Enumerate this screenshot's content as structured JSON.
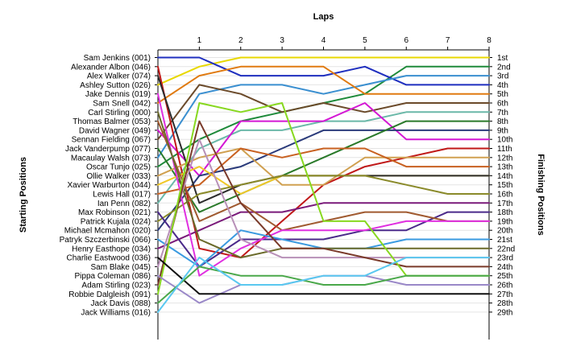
{
  "chart_data": {
    "type": "line",
    "title": "Laps",
    "ylabel_left": "Starting Positions",
    "ylabel_right": "Finishing Positions",
    "x_ticks": [
      "1",
      "2",
      "3",
      "4",
      "5",
      "6",
      "7",
      "8"
    ],
    "starting_positions": [
      "Sam Jenkins (001)",
      "Alexander Albon (046)",
      "Alex Walker (074)",
      "Ashley Sutton (026)",
      "Jake Dennis (019)",
      "Sam Snell (042)",
      "Carl Stirling (000)",
      "Thomas Balmer (053)",
      "David Wagner (049)",
      "Sennan Fielding (067)",
      "Jack Vanderpump (077)",
      "Macaulay Walsh (073)",
      "Oscar Tunjo (025)",
      "Ollie Walker (033)",
      "Xavier Warburton (044)",
      "Lewis Hall (017)",
      "Ian Penn (082)",
      "Max Robinson (021)",
      "Patrick Kujala (024)",
      "Michael Mcmahon (020)",
      "Patryk Szczerbinski (066)",
      "Henry Easthope (034)",
      "Charlie Eastwood (036)",
      "Sam Blake (045)",
      "Pippa Coleman (086)",
      "Adam Stirling (023)",
      "Robbie Dalgleish (091)",
      "Jack Davis (088)",
      "Jack Williams (016)"
    ],
    "finishing_positions": [
      "1st",
      "2nd",
      "3rd",
      "4th",
      "5th",
      "6th",
      "7th",
      "8th",
      "9th",
      "10th",
      "11th",
      "12th",
      "13th",
      "14th",
      "15th",
      "16th",
      "17th",
      "18th",
      "19th",
      "20th",
      "21st",
      "22nd",
      "23rd",
      "24th",
      "25th",
      "26th",
      "27th",
      "28th",
      "29th"
    ],
    "series": [
      {
        "color": "#e8d800",
        "positions": [
          4,
          2,
          1,
          1,
          1,
          1,
          1,
          1,
          1
        ]
      },
      {
        "color": "#1e8a3a",
        "positions": [
          13,
          10,
          8,
          7,
          6,
          5,
          2,
          2,
          2
        ]
      },
      {
        "color": "#1f2fbf",
        "positions": [
          1,
          1,
          3,
          3,
          3,
          2,
          4,
          4,
          4
        ]
      },
      {
        "color": "#3a8fd0",
        "positions": [
          12,
          5,
          4,
          4,
          5,
          4,
          3,
          3,
          3
        ]
      },
      {
        "color": "#e07a10",
        "positions": [
          6,
          3,
          2,
          2,
          2,
          5,
          5,
          5,
          5
        ]
      },
      {
        "color": "#6b4a2a",
        "positions": [
          10,
          4,
          5,
          7,
          6,
          7,
          6,
          6,
          6
        ]
      },
      {
        "color": "#6ab8a8",
        "positions": [
          17,
          11,
          9,
          9,
          8,
          8,
          7,
          7,
          7
        ]
      },
      {
        "color": "#d418d4",
        "positions": [
          9,
          14,
          8,
          8,
          8,
          6,
          10,
          10,
          10
        ]
      },
      {
        "color": "#2a3a7a",
        "positions": [
          20,
          14,
          13,
          11,
          9,
          9,
          9,
          9,
          9
        ]
      },
      {
        "color": "#2a7a2a",
        "positions": [
          11,
          18,
          16,
          14,
          12,
          10,
          8,
          8,
          8
        ]
      },
      {
        "color": "#c01818",
        "positions": [
          2,
          22,
          23,
          19,
          15,
          13,
          12,
          11,
          11
        ]
      },
      {
        "color": "#d0a050",
        "positions": [
          14,
          12,
          11,
          15,
          15,
          12,
          12,
          12,
          12
        ]
      },
      {
        "color": "#c86020",
        "positions": [
          16,
          15,
          11,
          12,
          11,
          11,
          13,
          13,
          13
        ]
      },
      {
        "color": "#f0c828",
        "positions": [
          15,
          13,
          16,
          14,
          14,
          14,
          14,
          14,
          14
        ]
      },
      {
        "color": "#2c2c2c",
        "positions": [
          3,
          17,
          15,
          14,
          14,
          14,
          14,
          14,
          14
        ]
      },
      {
        "color": "#8a8a2a",
        "positions": [
          19,
          16,
          15,
          14,
          14,
          14,
          15,
          16,
          16
        ]
      },
      {
        "color": "#7a1a7a",
        "positions": [
          22,
          20,
          18,
          18,
          17,
          17,
          17,
          17,
          17
        ]
      },
      {
        "color": "#4b2a8a",
        "positions": [
          18,
          24,
          21,
          21,
          21,
          20,
          20,
          18,
          18
        ]
      },
      {
        "color": "#a05a30",
        "positions": [
          8,
          19,
          17,
          20,
          19,
          18,
          18,
          19,
          19
        ]
      },
      {
        "color": "#e030e0",
        "positions": [
          5,
          25,
          22,
          20,
          20,
          20,
          19,
          19,
          19
        ]
      },
      {
        "color": "#3a9ae0",
        "positions": [
          21,
          24,
          20,
          21,
          22,
          22,
          21,
          21,
          21
        ]
      },
      {
        "color": "#6a6a2a",
        "positions": [
          7,
          21,
          23,
          22,
          22,
          22,
          22,
          22,
          22
        ]
      },
      {
        "color": "#b890b8",
        "positions": [
          24,
          10,
          21,
          23,
          23,
          23,
          23,
          23,
          23
        ]
      },
      {
        "color": "#7a3a2a",
        "positions": [
          26,
          8,
          17,
          22,
          22,
          23,
          24,
          24,
          24
        ]
      },
      {
        "color": "#88d820",
        "positions": [
          27,
          6,
          7,
          6,
          19,
          19,
          25,
          25,
          25
        ]
      },
      {
        "color": "#9a88c8",
        "positions": [
          25,
          28,
          26,
          26,
          25,
          25,
          26,
          26,
          26
        ]
      },
      {
        "color": "#101010",
        "positions": [
          23,
          27,
          27,
          27,
          27,
          27,
          27,
          27,
          27
        ]
      },
      {
        "color": "#4aa84a",
        "positions": [
          28,
          24,
          25,
          25,
          26,
          26,
          25,
          25,
          25
        ]
      },
      {
        "color": "#5ac8f0",
        "positions": [
          29,
          23,
          26,
          26,
          25,
          25,
          23,
          23,
          23
        ]
      }
    ]
  }
}
